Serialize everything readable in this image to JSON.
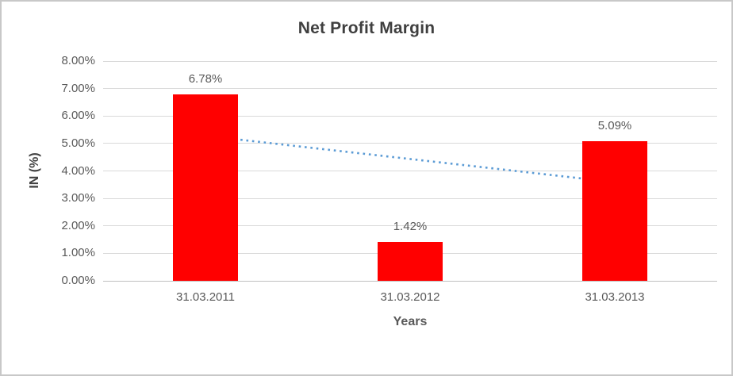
{
  "chart_data": {
    "type": "bar",
    "title": "Net Profit Margin",
    "xlabel": "Years",
    "ylabel": "IN (%)",
    "categories": [
      "31.03.2011",
      "31.03.2012",
      "31.03.2013"
    ],
    "values": [
      6.78,
      1.42,
      5.09
    ],
    "data_labels": [
      "6.78%",
      "1.42%",
      "5.09%"
    ],
    "ylim": [
      0,
      8
    ],
    "ytick_labels_top_to_bottom": [
      "8.00%",
      "7.00%",
      "6.00%",
      "5.00%",
      "4.00%",
      "3.00%",
      "2.00%",
      "1.00%",
      "0.00%"
    ],
    "grid": true,
    "legend": "none",
    "bar_color": "#ff0000",
    "text_color": "#595959",
    "trendline": {
      "type": "linear",
      "style": "dotted",
      "color": "#5b9bd5",
      "start_value": 5.28,
      "end_value": 3.59
    }
  }
}
